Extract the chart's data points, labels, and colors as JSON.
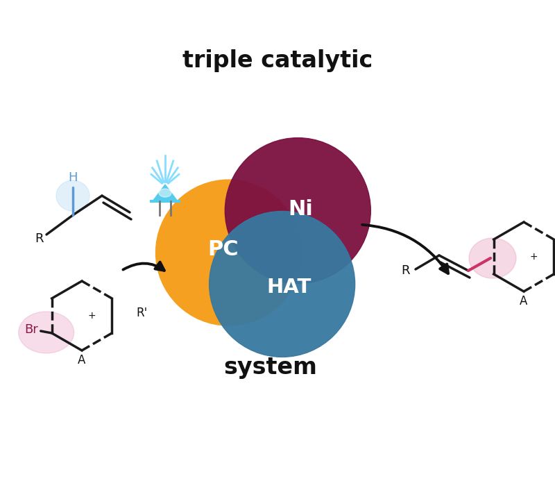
{
  "title_text": "triple catalytic",
  "subtitle_text": "system",
  "title_fontsize": 24,
  "subtitle_fontsize": 24,
  "bg_color": "#ffffff",
  "orange_color": "#F5A020",
  "maroon_color": "#7B1040",
  "blue_color": "#3878A0",
  "ni_label": "Ni",
  "pc_label": "PC",
  "hat_label": "HAT",
  "h_color": "#5B9BD5",
  "br_color": "#8B1A4A",
  "bond_color": "#1a1a1a",
  "highlight_pink": "#cc3366",
  "arrow_color": "#111111",
  "led_color": "#55CCEE",
  "ray_color": "#88DDFF"
}
